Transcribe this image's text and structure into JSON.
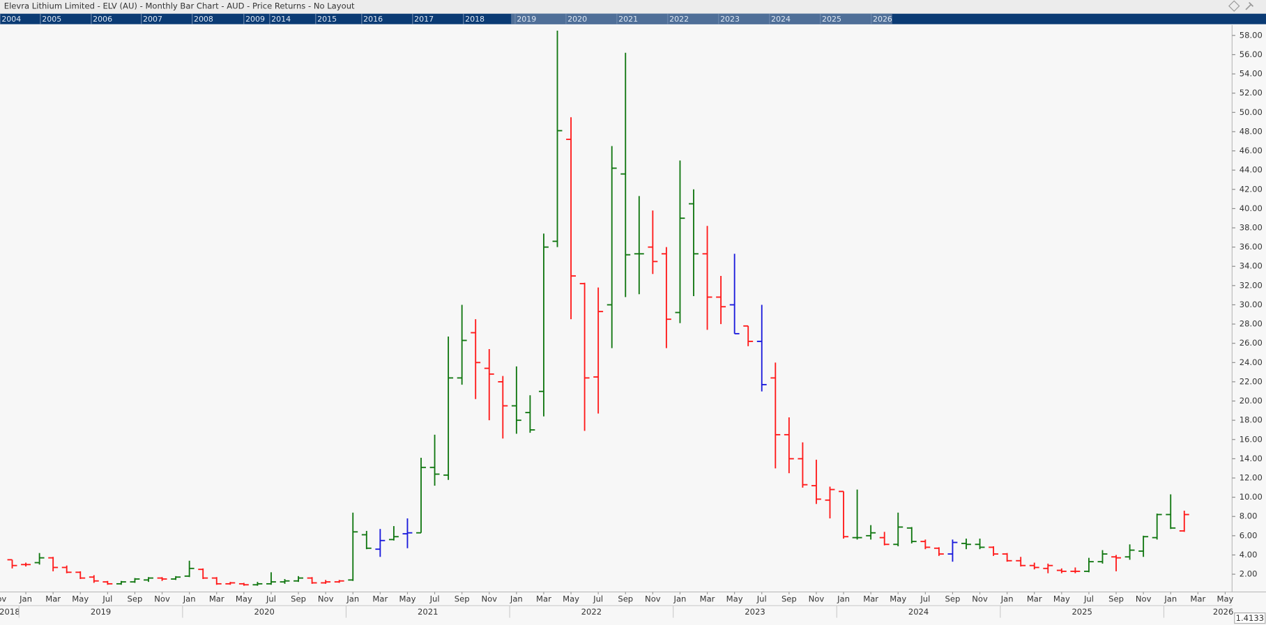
{
  "chart_data": {
    "type": "ohlc",
    "title": "Elevra Lithium Limited - ELV (AU) - Monthly Bar Chart - AUD - Price Returns - No Layout",
    "navigator_years": [
      "2004",
      "2005",
      "2006",
      "2007",
      "2008",
      "2009",
      "2014",
      "2015",
      "2016",
      "2017",
      "2018",
      "2019",
      "2020",
      "2021",
      "2022",
      "2023",
      "2024",
      "2025",
      "2026"
    ],
    "price_box": "1.4133",
    "x": [
      "2018-12",
      "2019-01",
      "2019-02",
      "2019-03",
      "2019-04",
      "2019-05",
      "2019-06",
      "2019-07",
      "2019-08",
      "2019-09",
      "2019-10",
      "2019-11",
      "2019-12",
      "2020-01",
      "2020-02",
      "2020-03",
      "2020-04",
      "2020-05",
      "2020-06",
      "2020-07",
      "2020-08",
      "2020-09",
      "2020-10",
      "2020-11",
      "2020-12",
      "2021-01",
      "2021-02",
      "2021-03",
      "2021-04",
      "2021-05",
      "2021-06",
      "2021-07",
      "2021-08",
      "2021-09",
      "2021-10",
      "2021-11",
      "2021-12",
      "2022-01",
      "2022-02",
      "2022-03",
      "2022-04",
      "2022-05",
      "2022-06",
      "2022-07",
      "2022-08",
      "2022-09",
      "2022-10",
      "2022-11",
      "2022-12",
      "2023-01",
      "2023-02",
      "2023-03",
      "2023-04",
      "2023-05",
      "2023-06",
      "2023-07",
      "2023-08",
      "2023-09",
      "2023-10",
      "2023-11",
      "2023-12",
      "2024-01",
      "2024-02",
      "2024-03",
      "2024-04",
      "2024-05",
      "2024-06",
      "2024-07",
      "2024-08",
      "2024-09",
      "2024-10",
      "2024-11",
      "2024-12",
      "2025-01",
      "2025-02",
      "2025-03",
      "2025-04",
      "2025-05",
      "2025-06",
      "2025-07",
      "2025-08",
      "2025-09",
      "2025-10",
      "2025-11",
      "2025-12",
      "2026-01",
      "2026-02"
    ],
    "open": [
      3.5,
      3.0,
      3.2,
      3.7,
      2.7,
      2.2,
      1.7,
      1.2,
      1.0,
      1.2,
      1.4,
      1.6,
      1.5,
      1.8,
      2.5,
      1.6,
      1.0,
      1.0,
      0.9,
      1.0,
      1.2,
      1.3,
      1.6,
      1.1,
      1.2,
      1.4,
      6.1,
      4.6,
      5.6,
      6.2,
      6.3,
      13.1,
      12.3,
      22.4,
      27.1,
      23.4,
      22.0,
      19.5,
      18.8,
      21.0,
      36.6,
      47.2,
      32.2,
      22.5,
      30.0,
      43.6,
      35.3,
      36.0,
      35.3,
      29.2,
      40.5,
      35.3,
      30.8,
      30.0,
      27.8,
      26.2,
      22.4,
      16.5,
      14.0,
      11.2,
      9.7,
      10.6,
      5.8,
      6.0,
      5.8,
      5.1,
      6.8,
      5.4,
      4.7,
      4.1,
      5.2,
      5.1,
      4.8,
      4.1,
      3.4,
      2.9,
      2.6,
      2.4,
      2.3,
      2.3,
      3.3,
      3.8,
      3.8,
      4.4,
      5.8,
      8.2,
      6.5
    ],
    "high": [
      3.5,
      3.2,
      4.2,
      3.8,
      2.9,
      2.3,
      1.9,
      1.3,
      1.3,
      1.6,
      1.7,
      1.7,
      1.8,
      3.4,
      2.6,
      1.7,
      1.2,
      1.1,
      1.2,
      2.2,
      1.5,
      1.8,
      1.7,
      1.4,
      1.4,
      8.4,
      6.5,
      6.7,
      7.0,
      7.8,
      14.1,
      16.5,
      26.7,
      30.0,
      28.5,
      25.4,
      22.6,
      23.6,
      20.6,
      37.4,
      58.5,
      49.5,
      32.3,
      31.8,
      46.5,
      56.2,
      41.3,
      39.8,
      36.0,
      45.0,
      42.0,
      38.2,
      33.0,
      35.3,
      27.8,
      30.0,
      24.0,
      18.3,
      15.7,
      13.9,
      11.1,
      10.6,
      10.8,
      7.1,
      6.4,
      8.4,
      6.9,
      5.6,
      4.8,
      5.6,
      5.7,
      5.7,
      4.9,
      4.2,
      3.8,
      3.2,
      3.1,
      2.6,
      2.7,
      3.7,
      4.5,
      4.0,
      5.1,
      6.0,
      8.3,
      10.3,
      8.6
    ],
    "low": [
      2.6,
      2.8,
      3.0,
      2.3,
      2.1,
      1.5,
      1.1,
      0.9,
      0.9,
      1.1,
      1.2,
      1.3,
      1.4,
      1.7,
      1.5,
      0.9,
      0.9,
      0.8,
      0.8,
      0.9,
      1.0,
      1.2,
      1.0,
      1.0,
      1.1,
      1.3,
      4.6,
      3.8,
      5.5,
      4.7,
      6.3,
      11.2,
      11.8,
      21.7,
      20.2,
      18.0,
      16.1,
      16.6,
      16.7,
      18.4,
      36.0,
      28.5,
      16.9,
      18.7,
      25.5,
      30.8,
      31.1,
      33.2,
      25.5,
      28.1,
      30.9,
      27.4,
      28.0,
      27.0,
      25.7,
      21.0,
      13.0,
      12.5,
      11.0,
      9.3,
      7.8,
      5.7,
      5.6,
      5.6,
      5.0,
      4.9,
      5.2,
      4.6,
      3.9,
      3.3,
      4.6,
      4.6,
      3.9,
      3.3,
      2.8,
      2.5,
      2.1,
      2.1,
      2.1,
      2.2,
      3.1,
      2.3,
      3.5,
      3.8,
      5.6,
      6.7,
      6.4
    ],
    "close": [
      2.9,
      3.0,
      3.7,
      2.7,
      2.2,
      1.6,
      1.3,
      1.0,
      1.2,
      1.5,
      1.6,
      1.5,
      1.7,
      2.6,
      1.6,
      1.0,
      1.1,
      0.9,
      1.0,
      1.2,
      1.3,
      1.6,
      1.1,
      1.2,
      1.3,
      6.4,
      4.7,
      5.5,
      5.9,
      6.3,
      13.1,
      12.4,
      22.4,
      26.3,
      24.0,
      22.8,
      19.5,
      18.0,
      17.0,
      36.0,
      48.1,
      33.0,
      22.4,
      29.3,
      44.2,
      35.2,
      35.3,
      34.5,
      28.5,
      39.0,
      35.3,
      30.8,
      29.8,
      27.0,
      26.2,
      21.7,
      16.5,
      14.0,
      11.3,
      9.8,
      10.8,
      5.9,
      5.8,
      6.3,
      5.1,
      6.9,
      5.4,
      4.8,
      4.1,
      5.3,
      5.1,
      4.8,
      4.1,
      3.4,
      2.9,
      2.7,
      2.9,
      2.3,
      2.3,
      3.3,
      4.1,
      3.7,
      4.5,
      5.9,
      8.2,
      6.8,
      8.2
    ],
    "colors": [
      "#ff1a1a",
      "#ff1a1a",
      "#117711",
      "#ff1a1a",
      "#ff1a1a",
      "#ff1a1a",
      "#ff1a1a",
      "#ff1a1a",
      "#117711",
      "#117711",
      "#117711",
      "#ff1a1a",
      "#117711",
      "#117711",
      "#ff1a1a",
      "#ff1a1a",
      "#ff1a1a",
      "#ff1a1a",
      "#117711",
      "#117711",
      "#117711",
      "#117711",
      "#ff1a1a",
      "#ff1a1a",
      "#ff1a1a",
      "#117711",
      "#117711",
      "#1a1adc",
      "#117711",
      "#1a1adc",
      "#117711",
      "#117711",
      "#117711",
      "#117711",
      "#ff1a1a",
      "#ff1a1a",
      "#ff1a1a",
      "#117711",
      "#117711",
      "#117711",
      "#117711",
      "#ff1a1a",
      "#ff1a1a",
      "#ff1a1a",
      "#117711",
      "#117711",
      "#117711",
      "#ff1a1a",
      "#ff1a1a",
      "#117711",
      "#117711",
      "#ff1a1a",
      "#ff1a1a",
      "#1a1adc",
      "#ff1a1a",
      "#1a1adc",
      "#ff1a1a",
      "#ff1a1a",
      "#ff1a1a",
      "#ff1a1a",
      "#ff1a1a",
      "#ff1a1a",
      "#117711",
      "#117711",
      "#ff1a1a",
      "#117711",
      "#117711",
      "#ff1a1a",
      "#ff1a1a",
      "#1a1adc",
      "#117711",
      "#117711",
      "#ff1a1a",
      "#ff1a1a",
      "#ff1a1a",
      "#ff1a1a",
      "#ff1a1a",
      "#ff1a1a",
      "#ff1a1a",
      "#117711",
      "#117711",
      "#ff1a1a",
      "#117711",
      "#117711",
      "#117711",
      "#117711",
      "#ff1a1a"
    ],
    "ylim": [
      0.24,
      59.0
    ],
    "yticks": [
      {
        "value": 2,
        "label": "2.00"
      },
      {
        "value": 4,
        "label": "4.00"
      },
      {
        "value": 6,
        "label": "6.00"
      },
      {
        "value": 8,
        "label": "8.00"
      },
      {
        "value": 10,
        "label": "10.00"
      },
      {
        "value": 12,
        "label": "12.00"
      },
      {
        "value": 14,
        "label": "14.00"
      },
      {
        "value": 16,
        "label": "16.00"
      },
      {
        "value": 18,
        "label": "18.00"
      },
      {
        "value": 20,
        "label": "20.00"
      },
      {
        "value": 22,
        "label": "22.00"
      },
      {
        "value": 24,
        "label": "24.00"
      },
      {
        "value": 26,
        "label": "26.00"
      },
      {
        "value": 28,
        "label": "28.00"
      },
      {
        "value": 30,
        "label": "30.00"
      },
      {
        "value": 32,
        "label": "32.00"
      },
      {
        "value": 34,
        "label": "34.00"
      },
      {
        "value": 36,
        "label": "36.00"
      },
      {
        "value": 38,
        "label": "38.00"
      },
      {
        "value": 40,
        "label": "40.00"
      },
      {
        "value": 42,
        "label": "42.00"
      },
      {
        "value": 44,
        "label": "44.00"
      },
      {
        "value": 46,
        "label": "46.00"
      },
      {
        "value": 48,
        "label": "48.00"
      },
      {
        "value": 50,
        "label": "50.00"
      },
      {
        "value": 52,
        "label": "52.00"
      },
      {
        "value": 54,
        "label": "54.00"
      },
      {
        "value": 56,
        "label": "56.00"
      },
      {
        "value": 58,
        "label": "58.00"
      }
    ],
    "month_ticks": [
      {
        "value": "2018-11",
        "label": "Nov"
      },
      {
        "value": "2019-01",
        "label": "Jan"
      },
      {
        "value": "2019-03",
        "label": "Mar"
      },
      {
        "value": "2019-05",
        "label": "May"
      },
      {
        "value": "2019-07",
        "label": "Jul"
      },
      {
        "value": "2019-09",
        "label": "Sep"
      },
      {
        "value": "2019-11",
        "label": "Nov"
      },
      {
        "value": "2020-01",
        "label": "Jan"
      },
      {
        "value": "2020-03",
        "label": "Mar"
      },
      {
        "value": "2020-05",
        "label": "May"
      },
      {
        "value": "2020-07",
        "label": "Jul"
      },
      {
        "value": "2020-09",
        "label": "Sep"
      },
      {
        "value": "2020-11",
        "label": "Nov"
      },
      {
        "value": "2021-01",
        "label": "Jan"
      },
      {
        "value": "2021-03",
        "label": "Mar"
      },
      {
        "value": "2021-05",
        "label": "May"
      },
      {
        "value": "2021-07",
        "label": "Jul"
      },
      {
        "value": "2021-09",
        "label": "Sep"
      },
      {
        "value": "2021-11",
        "label": "Nov"
      },
      {
        "value": "2022-01",
        "label": "Jan"
      },
      {
        "value": "2022-03",
        "label": "Mar"
      },
      {
        "value": "2022-05",
        "label": "May"
      },
      {
        "value": "2022-07",
        "label": "Jul"
      },
      {
        "value": "2022-09",
        "label": "Sep"
      },
      {
        "value": "2022-11",
        "label": "Nov"
      },
      {
        "value": "2023-01",
        "label": "Jan"
      },
      {
        "value": "2023-03",
        "label": "Mar"
      },
      {
        "value": "2023-05",
        "label": "May"
      },
      {
        "value": "2023-07",
        "label": "Jul"
      },
      {
        "value": "2023-09",
        "label": "Sep"
      },
      {
        "value": "2023-11",
        "label": "Nov"
      },
      {
        "value": "2024-01",
        "label": "Jan"
      },
      {
        "value": "2024-03",
        "label": "Mar"
      },
      {
        "value": "2024-05",
        "label": "May"
      },
      {
        "value": "2024-07",
        "label": "Jul"
      },
      {
        "value": "2024-09",
        "label": "Sep"
      },
      {
        "value": "2024-11",
        "label": "Nov"
      },
      {
        "value": "2025-01",
        "label": "Jan"
      },
      {
        "value": "2025-03",
        "label": "Mar"
      },
      {
        "value": "2025-05",
        "label": "May"
      },
      {
        "value": "2025-07",
        "label": "Jul"
      },
      {
        "value": "2025-09",
        "label": "Sep"
      },
      {
        "value": "2025-11",
        "label": "Nov"
      },
      {
        "value": "2026-01",
        "label": "Jan"
      },
      {
        "value": "2026-03",
        "label": "Mar"
      },
      {
        "value": "2026-05",
        "label": "May"
      }
    ],
    "year_ticks": [
      2018,
      2019,
      2020,
      2021,
      2022,
      2023,
      2024,
      2025,
      2026
    ]
  }
}
